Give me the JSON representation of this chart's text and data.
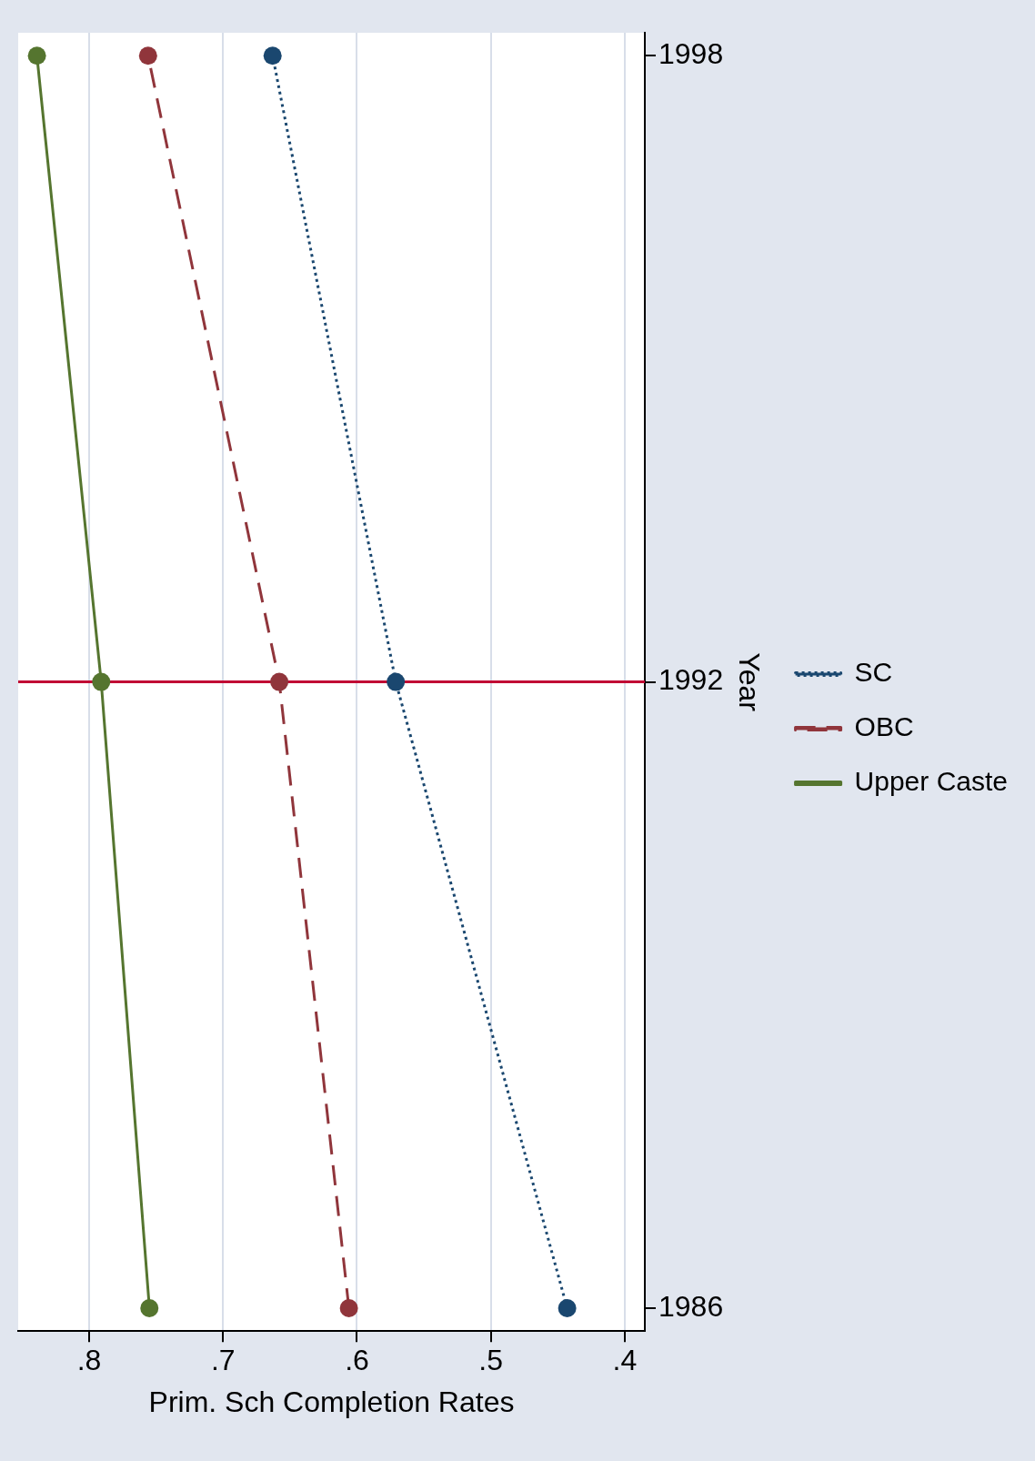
{
  "chart_data": {
    "type": "line",
    "xlabel": "Prim. Sch Completion Rates",
    "ylabel": "Year",
    "series": [
      {
        "name": "SC",
        "color": "#1a476f",
        "x": [
          0.443,
          0.571,
          0.663
        ],
        "values": [
          1986,
          1992,
          1998
        ],
        "line_style": "dotted"
      },
      {
        "name": "OBC",
        "color": "#90353b",
        "x": [
          0.606,
          0.658,
          0.756
        ],
        "values": [
          1986,
          1992,
          1998
        ],
        "line_style": "dashed"
      },
      {
        "name": "Upper Caste",
        "color": "#55752f",
        "x": [
          0.755,
          0.791,
          0.839
        ],
        "values": [
          1986,
          1992,
          1998
        ],
        "line_style": "solid"
      }
    ],
    "xlim": [
      0.853,
      0.385
    ],
    "xticks": [
      {
        "value": 0.8,
        "label": ".8"
      },
      {
        "value": 0.7,
        "label": ".7"
      },
      {
        "value": 0.6,
        "label": ".6"
      },
      {
        "value": 0.5,
        "label": ".5"
      },
      {
        "value": 0.4,
        "label": ".4"
      }
    ],
    "ylim": [
      1985.78,
      1998.22
    ],
    "yticks": [
      1986,
      1992,
      1998
    ],
    "ref_lines": [
      {
        "axis": "y",
        "value": 1992,
        "color": "#c10534"
      }
    ],
    "grid": "x",
    "legend": "right",
    "marker": "circle"
  }
}
